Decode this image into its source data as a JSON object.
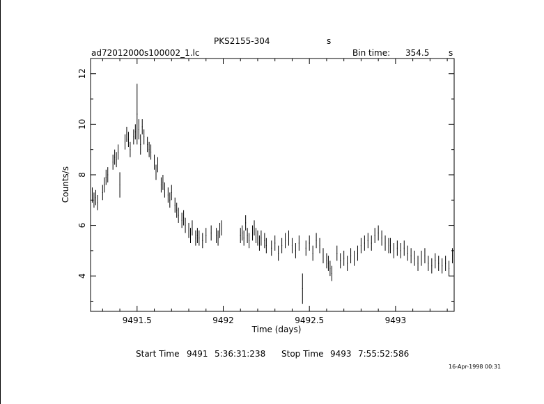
{
  "header": {
    "object": "PKS2155-304",
    "object_unit": "s",
    "filename": "ad72012000s100002_1.lc",
    "bin_label": "Bin time:",
    "bin_value": "354.5",
    "bin_unit": "s"
  },
  "footer": {
    "start_label": "Start Time",
    "start_day": "9491",
    "start_time": "5:36:31:238",
    "stop_label": "Stop Time",
    "stop_day": "9493",
    "stop_time": "7:55:52:586",
    "stamp": "16-Apr-1998 00:31"
  },
  "chart_data": {
    "type": "scatter",
    "title": "PKS2155-304",
    "xlabel": "Time (days)",
    "ylabel": "Counts/s",
    "xlim": [
      9491.23,
      9493.34
    ],
    "ylim": [
      2.6,
      12.6
    ],
    "xticks": [
      9491.5,
      9492,
      9492.5,
      9493
    ],
    "xtick_labels": [
      "9491.5",
      "9492",
      "9492.5",
      "9493"
    ],
    "yticks": [
      4,
      6,
      8,
      10,
      12
    ],
    "ytick_labels": [
      "4",
      "6",
      "8",
      "10",
      "12"
    ],
    "error_bars": true,
    "series": [
      {
        "points": [
          [
            9491.24,
            7.2,
            0.3
          ],
          [
            9491.25,
            7.0,
            0.3
          ],
          [
            9491.26,
            7.1,
            0.3
          ],
          [
            9491.27,
            6.9,
            0.3
          ],
          [
            9491.3,
            7.3,
            0.3
          ],
          [
            9491.31,
            7.6,
            0.3
          ],
          [
            9491.32,
            7.9,
            0.3
          ],
          [
            9491.33,
            8.0,
            0.3
          ],
          [
            9491.36,
            8.5,
            0.3
          ],
          [
            9491.37,
            8.7,
            0.3
          ],
          [
            9491.38,
            8.6,
            0.3
          ],
          [
            9491.39,
            8.9,
            0.3
          ],
          [
            9491.4,
            7.6,
            0.5
          ],
          [
            9491.43,
            9.3,
            0.3
          ],
          [
            9491.44,
            9.6,
            0.3
          ],
          [
            9491.45,
            9.4,
            0.3
          ],
          [
            9491.46,
            9.0,
            0.3
          ],
          [
            9491.48,
            9.5,
            0.3
          ],
          [
            9491.49,
            9.7,
            0.3
          ],
          [
            9491.5,
            10.4,
            1.2
          ],
          [
            9491.51,
            9.8,
            0.4
          ],
          [
            9491.52,
            9.2,
            0.4
          ],
          [
            9491.53,
            9.9,
            0.3
          ],
          [
            9491.54,
            9.5,
            0.3
          ],
          [
            9491.56,
            9.2,
            0.3
          ],
          [
            9491.57,
            9.0,
            0.3
          ],
          [
            9491.58,
            8.9,
            0.3
          ],
          [
            9491.6,
            8.5,
            0.3
          ],
          [
            9491.61,
            8.1,
            0.3
          ],
          [
            9491.62,
            8.4,
            0.3
          ],
          [
            9491.64,
            7.6,
            0.3
          ],
          [
            9491.65,
            7.7,
            0.3
          ],
          [
            9491.66,
            7.4,
            0.3
          ],
          [
            9491.68,
            7.2,
            0.3
          ],
          [
            9491.69,
            7.0,
            0.3
          ],
          [
            9491.7,
            7.3,
            0.3
          ],
          [
            9491.72,
            6.8,
            0.3
          ],
          [
            9491.73,
            6.6,
            0.3
          ],
          [
            9491.74,
            6.4,
            0.3
          ],
          [
            9491.76,
            6.2,
            0.3
          ],
          [
            9491.77,
            6.3,
            0.3
          ],
          [
            9491.78,
            6.0,
            0.3
          ],
          [
            9491.8,
            5.8,
            0.3
          ],
          [
            9491.81,
            5.6,
            0.3
          ],
          [
            9491.82,
            5.9,
            0.3
          ],
          [
            9491.84,
            5.5,
            0.3
          ],
          [
            9491.85,
            5.6,
            0.3
          ],
          [
            9491.86,
            5.5,
            0.3
          ],
          [
            9491.88,
            5.4,
            0.3
          ],
          [
            9491.9,
            5.6,
            0.3
          ],
          [
            9491.93,
            5.7,
            0.3
          ],
          [
            9491.96,
            5.6,
            0.3
          ],
          [
            9491.97,
            5.5,
            0.3
          ],
          [
            9491.98,
            5.8,
            0.3
          ],
          [
            9491.99,
            5.9,
            0.3
          ],
          [
            9492.1,
            5.6,
            0.3
          ],
          [
            9492.11,
            5.7,
            0.3
          ],
          [
            9492.12,
            5.5,
            0.3
          ],
          [
            9492.13,
            6.1,
            0.3
          ],
          [
            9492.14,
            5.6,
            0.3
          ],
          [
            9492.15,
            5.4,
            0.3
          ],
          [
            9492.17,
            5.7,
            0.3
          ],
          [
            9492.18,
            5.9,
            0.3
          ],
          [
            9492.19,
            5.6,
            0.3
          ],
          [
            9492.2,
            5.5,
            0.3
          ],
          [
            9492.21,
            5.3,
            0.3
          ],
          [
            9492.22,
            5.5,
            0.3
          ],
          [
            9492.24,
            5.4,
            0.3
          ],
          [
            9492.25,
            5.2,
            0.3
          ],
          [
            9492.28,
            5.1,
            0.3
          ],
          [
            9492.3,
            5.3,
            0.3
          ],
          [
            9492.32,
            4.9,
            0.3
          ],
          [
            9492.34,
            5.2,
            0.3
          ],
          [
            9492.36,
            5.4,
            0.3
          ],
          [
            9492.38,
            5.5,
            0.3
          ],
          [
            9492.4,
            5.2,
            0.3
          ],
          [
            9492.42,
            5.0,
            0.3
          ],
          [
            9492.44,
            5.3,
            0.3
          ],
          [
            9492.46,
            3.5,
            0.6
          ],
          [
            9492.48,
            5.1,
            0.3
          ],
          [
            9492.5,
            5.3,
            0.3
          ],
          [
            9492.52,
            4.9,
            0.3
          ],
          [
            9492.54,
            5.4,
            0.3
          ],
          [
            9492.56,
            5.2,
            0.3
          ],
          [
            9492.58,
            4.8,
            0.3
          ],
          [
            9492.6,
            4.6,
            0.3
          ],
          [
            9492.61,
            4.5,
            0.3
          ],
          [
            9492.62,
            4.3,
            0.3
          ],
          [
            9492.63,
            4.1,
            0.3
          ],
          [
            9492.66,
            4.9,
            0.3
          ],
          [
            9492.68,
            4.6,
            0.3
          ],
          [
            9492.7,
            4.7,
            0.3
          ],
          [
            9492.72,
            4.5,
            0.3
          ],
          [
            9492.74,
            4.8,
            0.3
          ],
          [
            9492.76,
            4.7,
            0.3
          ],
          [
            9492.78,
            4.9,
            0.3
          ],
          [
            9492.8,
            5.2,
            0.3
          ],
          [
            9492.82,
            5.3,
            0.3
          ],
          [
            9492.84,
            5.4,
            0.3
          ],
          [
            9492.86,
            5.3,
            0.3
          ],
          [
            9492.88,
            5.6,
            0.3
          ],
          [
            9492.9,
            5.7,
            0.3
          ],
          [
            9492.92,
            5.5,
            0.3
          ],
          [
            9492.94,
            5.3,
            0.3
          ],
          [
            9492.96,
            5.2,
            0.3
          ],
          [
            9492.97,
            5.2,
            0.3
          ],
          [
            9492.99,
            5.0,
            0.3
          ],
          [
            9493.01,
            5.1,
            0.3
          ],
          [
            9493.03,
            5.0,
            0.3
          ],
          [
            9493.05,
            5.1,
            0.3
          ],
          [
            9493.07,
            4.9,
            0.3
          ],
          [
            9493.09,
            4.8,
            0.3
          ],
          [
            9493.11,
            4.7,
            0.3
          ],
          [
            9493.13,
            4.5,
            0.3
          ],
          [
            9493.15,
            4.7,
            0.3
          ],
          [
            9493.17,
            4.8,
            0.3
          ],
          [
            9493.19,
            4.5,
            0.3
          ],
          [
            9493.21,
            4.4,
            0.3
          ],
          [
            9493.23,
            4.6,
            0.3
          ],
          [
            9493.25,
            4.5,
            0.3
          ],
          [
            9493.27,
            4.4,
            0.3
          ],
          [
            9493.29,
            4.5,
            0.3
          ],
          [
            9493.31,
            4.3,
            0.3
          ],
          [
            9493.33,
            4.8,
            0.3
          ]
        ]
      }
    ]
  }
}
